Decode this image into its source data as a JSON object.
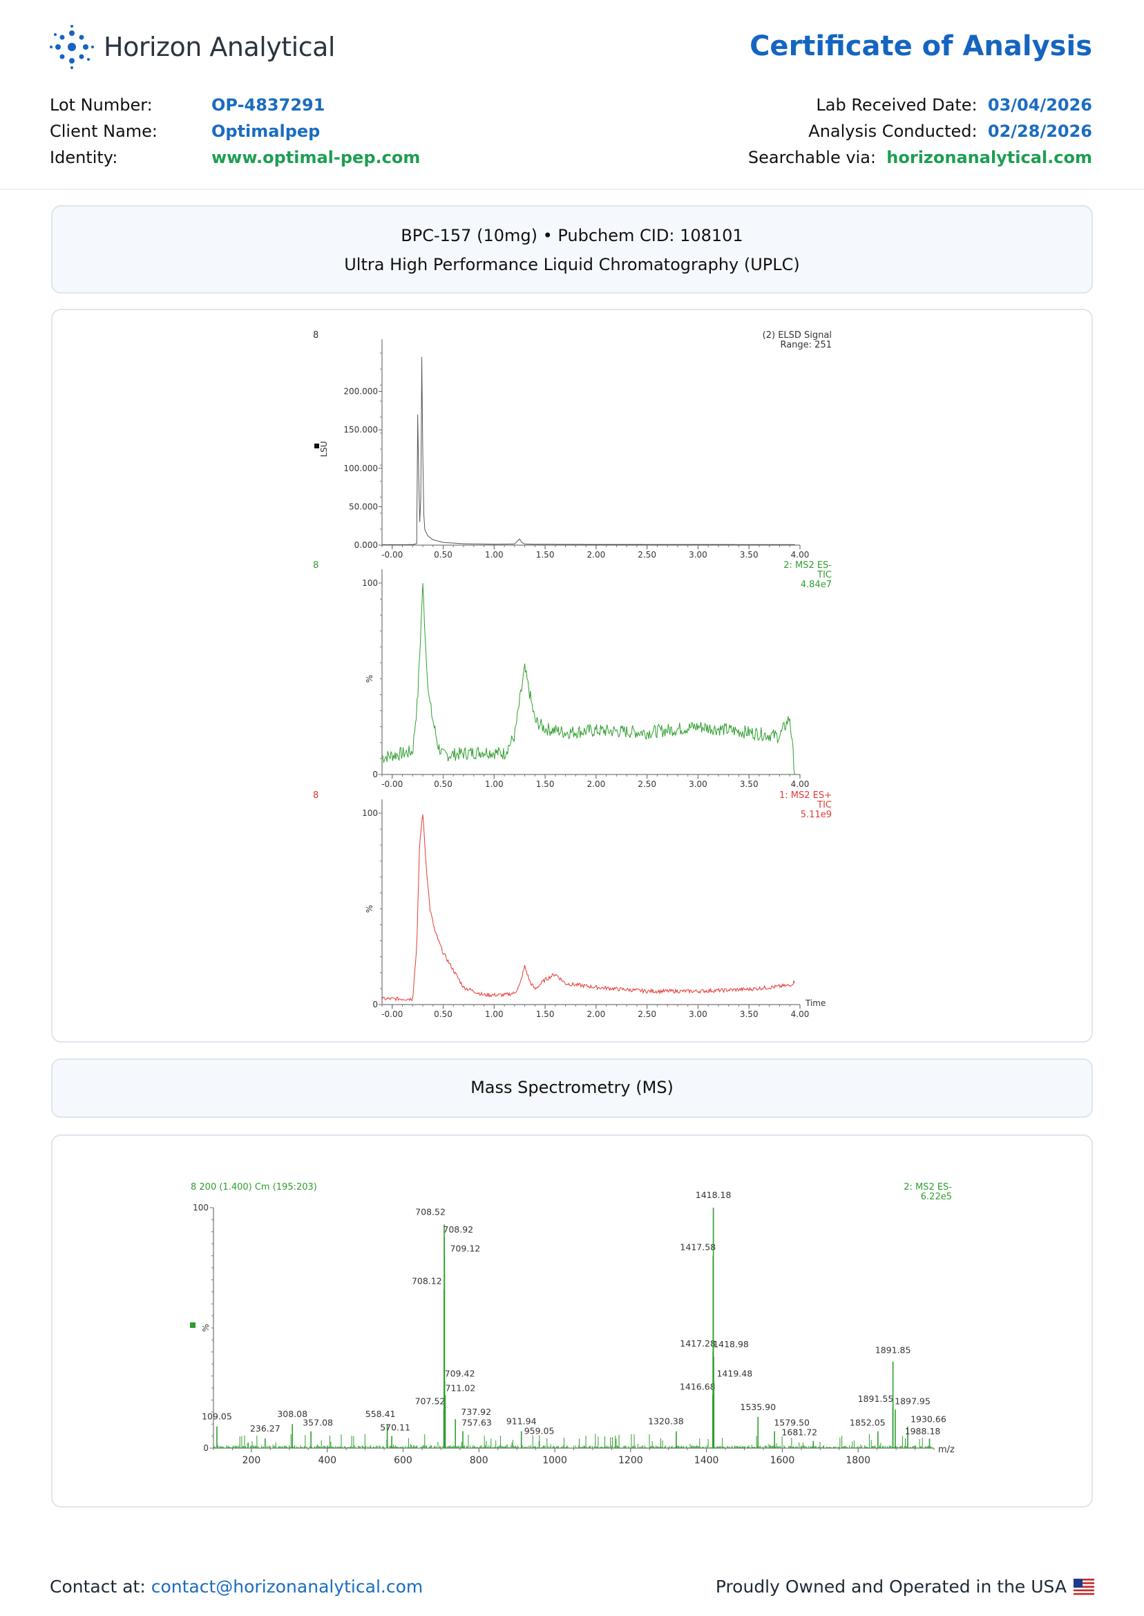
{
  "header": {
    "logo_text": "Horizon Analytical",
    "title": "Certificate of Analysis",
    "lot_label": "Lot Number:",
    "lot_value": "OP-4837291",
    "client_label": "Client Name:",
    "client_value": "Optimalpep",
    "identity_label": "Identity:",
    "identity_value": "www.optimal-pep.com",
    "received_label": "Lab Received Date:",
    "received_value": "03/04/2026",
    "conducted_label": "Analysis Conducted:",
    "conducted_value": "02/28/2026",
    "searchable_label": "Searchable via:",
    "searchable_value": "horizonanalytical.com"
  },
  "sample_card": {
    "line1": "BPC-157 (10mg) • Pubchem CID: 108101",
    "line2": "Ultra High Performance Liquid Chromatography (UPLC)"
  },
  "ms_card": {
    "title": "Mass Spectrometry (MS)"
  },
  "footer": {
    "contact_label": "Contact at:",
    "contact_email": "contact@horizonanalytical.com",
    "usa_text": "Proudly Owned and Operated in the USA"
  },
  "colors": {
    "brand_blue": "#1565c0",
    "link_blue": "#1b6cc1",
    "green": "#1e9e52",
    "elsd": "#555555",
    "ms_neg": "#2e9e2e",
    "ms_pos": "#e53935"
  },
  "chart_data": [
    {
      "type": "line",
      "panel_id": "8",
      "legend": [
        "(2) ELSD Signal",
        "Range: 251"
      ],
      "ylabel": "LSU",
      "xlim": [
        -0.1,
        4.0
      ],
      "ylim": [
        0,
        250000
      ],
      "x_ticks": [
        "-0.00",
        "0.50",
        "1.00",
        "1.50",
        "2.00",
        "2.50",
        "3.00",
        "3.50",
        "4.00"
      ],
      "y_ticks": [
        "0.000",
        "50.000",
        "100.000",
        "150.000",
        "200.000"
      ],
      "x": [
        -0.1,
        0.2,
        0.24,
        0.25,
        0.26,
        0.27,
        0.28,
        0.29,
        0.3,
        0.31,
        0.32,
        0.35,
        0.4,
        0.5,
        0.7,
        1.0,
        1.2,
        1.25,
        1.27,
        1.3,
        1.4,
        2.0,
        3.0,
        4.0
      ],
      "y": [
        500,
        600,
        2000,
        170000,
        90000,
        30000,
        60000,
        245000,
        120000,
        40000,
        20000,
        12000,
        7000,
        3500,
        1800,
        1200,
        1500,
        8000,
        3500,
        1500,
        1100,
        900,
        800,
        700
      ]
    },
    {
      "type": "line",
      "panel_id": "8",
      "legend": [
        "2: MS2 ES-",
        "TIC",
        "4.84e7"
      ],
      "ylabel": "%",
      "xlim": [
        -0.1,
        4.0
      ],
      "ylim": [
        0,
        100
      ],
      "x_ticks": [
        "-0.00",
        "0.50",
        "1.00",
        "1.50",
        "2.00",
        "2.50",
        "3.00",
        "3.50",
        "4.00"
      ],
      "y_ticks": [
        "0",
        "100"
      ],
      "x": [
        -0.1,
        0.0,
        0.1,
        0.2,
        0.25,
        0.28,
        0.3,
        0.33,
        0.36,
        0.4,
        0.45,
        0.5,
        0.7,
        0.9,
        1.1,
        1.2,
        1.25,
        1.3,
        1.35,
        1.4,
        1.5,
        1.7,
        2.0,
        2.5,
        3.0,
        3.5,
        3.8,
        3.9,
        3.95
      ],
      "y": [
        9,
        10,
        11,
        12,
        40,
        75,
        100,
        65,
        40,
        28,
        15,
        10,
        11,
        12,
        11,
        20,
        38,
        55,
        42,
        28,
        24,
        22,
        23,
        22,
        25,
        22,
        20,
        30,
        0
      ]
    },
    {
      "type": "line",
      "panel_id": "8",
      "legend": [
        "1: MS2 ES+",
        "TIC",
        "5.11e9"
      ],
      "ylabel": "%",
      "xlabel": "Time",
      "xlim": [
        -0.1,
        4.0
      ],
      "ylim": [
        0,
        100
      ],
      "x_ticks": [
        "-0.00",
        "0.50",
        "1.00",
        "1.50",
        "2.00",
        "2.50",
        "3.00",
        "3.50",
        "4.00"
      ],
      "y_ticks": [
        "0",
        "100"
      ],
      "x": [
        -0.1,
        0.0,
        0.1,
        0.2,
        0.24,
        0.27,
        0.3,
        0.33,
        0.37,
        0.42,
        0.5,
        0.6,
        0.7,
        0.9,
        1.1,
        1.2,
        1.25,
        1.3,
        1.35,
        1.4,
        1.5,
        1.6,
        1.7,
        2.0,
        2.5,
        3.0,
        3.5,
        3.9,
        3.95
      ],
      "y": [
        3,
        3,
        3,
        3,
        30,
        85,
        100,
        75,
        50,
        38,
        27,
        18,
        9,
        5,
        5,
        6,
        10,
        20,
        12,
        8,
        13,
        16,
        11,
        9,
        7,
        7,
        8,
        10,
        12
      ]
    },
    {
      "type": "bar",
      "title": "8 200 (1.400) Cm (195:203)",
      "legend": [
        "2: MS2 ES-",
        "6.22e5"
      ],
      "ylabel": "%",
      "xlabel": "m/z",
      "xlim": [
        100,
        2000
      ],
      "ylim": [
        0,
        100
      ],
      "x_ticks": [
        "200",
        "400",
        "600",
        "800",
        "1000",
        "1200",
        "1400",
        "1600",
        "1800"
      ],
      "y_ticks": [
        "0",
        "100"
      ],
      "peaks": [
        {
          "mz": 109.05,
          "label": "109.05",
          "intensity": 9
        },
        {
          "mz": 236.27,
          "label": "236.27",
          "intensity": 4
        },
        {
          "mz": 308.08,
          "label": "308.08",
          "intensity": 10
        },
        {
          "mz": 357.08,
          "label": "357.08",
          "intensity": 7
        },
        {
          "mz": 558.41,
          "label": "558.41",
          "intensity": 10
        },
        {
          "mz": 570.11,
          "label": "570.11",
          "intensity": 5
        },
        {
          "mz": 707.52,
          "label": "707.52",
          "intensity": 16
        },
        {
          "mz": 708.12,
          "label": "708.12",
          "intensity": 66
        },
        {
          "mz": 708.52,
          "label": "708.52",
          "intensity": 93
        },
        {
          "mz": 708.92,
          "label": "708.92",
          "intensity": 88
        },
        {
          "mz": 709.12,
          "label": "709.12",
          "intensity": 80
        },
        {
          "mz": 709.42,
          "label": "709.42",
          "intensity": 28
        },
        {
          "mz": 711.02,
          "label": "711.02",
          "intensity": 22
        },
        {
          "mz": 737.92,
          "label": "737.92",
          "intensity": 12
        },
        {
          "mz": 757.63,
          "label": "757.63",
          "intensity": 7
        },
        {
          "mz": 911.94,
          "label": "911.94",
          "intensity": 7
        },
        {
          "mz": 959.05,
          "label": "959.05",
          "intensity": 3
        },
        {
          "mz": 1320.38,
          "label": "1320.38",
          "intensity": 7
        },
        {
          "mz": 1416.68,
          "label": "1416.68",
          "intensity": 22
        },
        {
          "mz": 1417.28,
          "label": "1417.28",
          "intensity": 40
        },
        {
          "mz": 1417.58,
          "label": "1417.58",
          "intensity": 80
        },
        {
          "mz": 1418.18,
          "label": "1418.18",
          "intensity": 100
        },
        {
          "mz": 1418.98,
          "label": "1418.98",
          "intensity": 38
        },
        {
          "mz": 1419.48,
          "label": "1419.48",
          "intensity": 28
        },
        {
          "mz": 1535.9,
          "label": "1535.90",
          "intensity": 13
        },
        {
          "mz": 1579.5,
          "label": "1579.50",
          "intensity": 7
        },
        {
          "mz": 1681.72,
          "label": "1681.72",
          "intensity": 3
        },
        {
          "mz": 1852.05,
          "label": "1852.05",
          "intensity": 7
        },
        {
          "mz": 1891.55,
          "label": "1891.55",
          "intensity": 17
        },
        {
          "mz": 1891.85,
          "label": "1891.85",
          "intensity": 36
        },
        {
          "mz": 1897.95,
          "label": "1897.95",
          "intensity": 16
        },
        {
          "mz": 1930.66,
          "label": "1930.66",
          "intensity": 9
        },
        {
          "mz": 1988.18,
          "label": "1988.18",
          "intensity": 4
        }
      ]
    }
  ]
}
